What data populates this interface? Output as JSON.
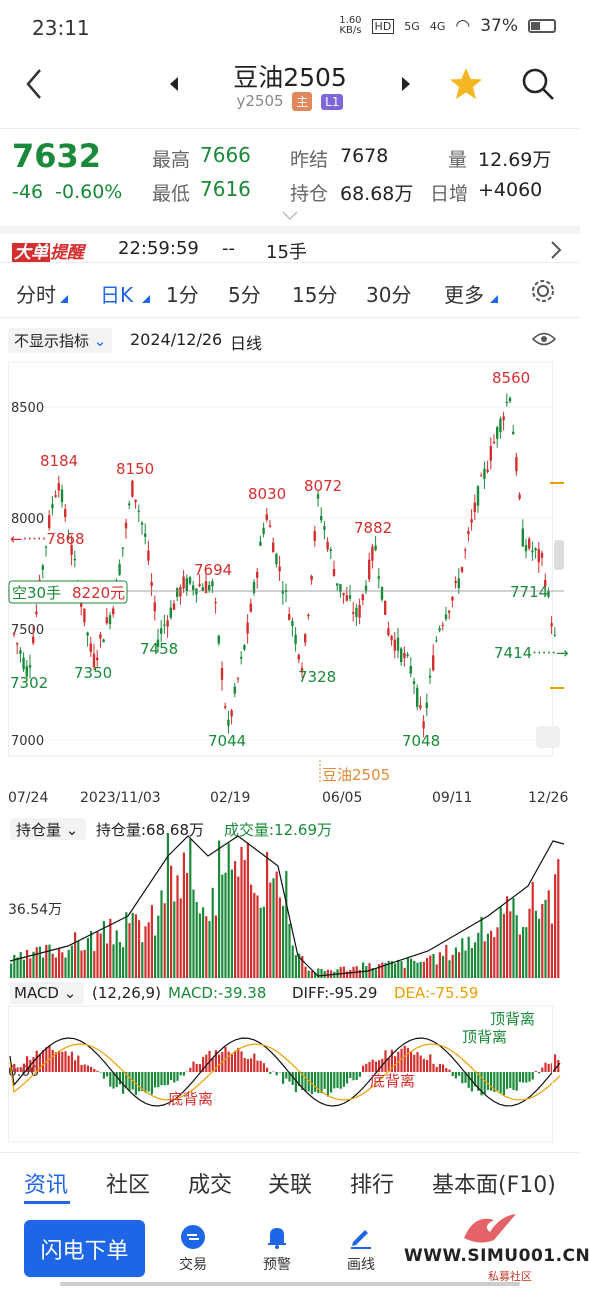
{
  "status_bar": {
    "time": "23:11",
    "net_speed": "1.60",
    "net_unit": "KB/s",
    "hd": "HD",
    "sig5g": "5G",
    "sig4g": "4G",
    "battery": "37%"
  },
  "header": {
    "title": "豆油2505",
    "code": "y2505",
    "tag_main": "主",
    "tag_l1": "L1"
  },
  "quote": {
    "price": "7632",
    "change": "-46",
    "change_pct": "-0.60%",
    "high_label": "最高",
    "high": "7666",
    "low_label": "最低",
    "low": "7616",
    "prev_label": "昨结",
    "prev": "7678",
    "oi_label": "持仓",
    "oi": "68.68万",
    "vol_label": "量",
    "vol": "12.69万",
    "daily_label": "日增",
    "daily": "+4060"
  },
  "alert": {
    "badge1": "大单",
    "badge2": "提醒",
    "time": "22:59:59",
    "dir": "--",
    "qty": "15手"
  },
  "tabs": [
    "分时",
    "日K",
    "1分",
    "5分",
    "15分",
    "30分",
    "更多"
  ],
  "indicator_bar": {
    "dropdown": "不显示指标",
    "date": "2024/12/26",
    "period": "日线"
  },
  "chart_data": {
    "type": "candlestick",
    "y_ticks": [
      "8500",
      "8000",
      "7500",
      "7000"
    ],
    "x_ticks": [
      "07/24",
      "2023/11/03",
      "02/19",
      "06/05",
      "09/11",
      "12/26"
    ],
    "ylim": [
      6900,
      8650
    ],
    "annotations": {
      "hi_8184": "8184",
      "hi_8150": "8150",
      "hi_8030": "8030",
      "hi_8072": "8072",
      "hi_7882": "7882",
      "hi_8560": "8560",
      "hi_7694": "7694",
      "lo_7302": "7302",
      "lo_7350": "7350",
      "lo_7458": "7458",
      "lo_7044": "7044",
      "lo_7328": "7328",
      "lo_7048": "7048",
      "lo_7714": "7714",
      "left_arrow": "←·····7868",
      "right_arrow": "7414·····→"
    },
    "position_box": {
      "side": "空30手",
      "amount": "8220元"
    },
    "watermark": "豆油2505",
    "oi_panel": {
      "dropdown": "持仓量",
      "oi_text": "持仓量:68.68万",
      "vol_text": "成交量:12.69万",
      "y_label": "36.54万"
    },
    "macd_panel": {
      "name": "MACD",
      "params": "(12,26,9)",
      "macd": "MACD:-39.38",
      "diff": "DIFF:-95.29",
      "dea": "DEA:-75.59",
      "zero": "0.00",
      "div1": "底背离",
      "div2": "底背离",
      "div3": "顶背离",
      "div4": "顶背离"
    }
  },
  "bottom_tabs": [
    "资讯",
    "社区",
    "成交",
    "关联",
    "排行",
    "基本面(F10)"
  ],
  "bottom_bar": {
    "flash": "闪电下单",
    "trade": "交易",
    "alert": "预警",
    "draw": "画线",
    "watermark": "WWW.SIMU001.CN",
    "watermark_sub": "私募社区"
  },
  "colors": {
    "up": "#d32f2f",
    "down": "#1a8a3a",
    "accent": "#1e66e6",
    "orange": "#e8a000"
  }
}
